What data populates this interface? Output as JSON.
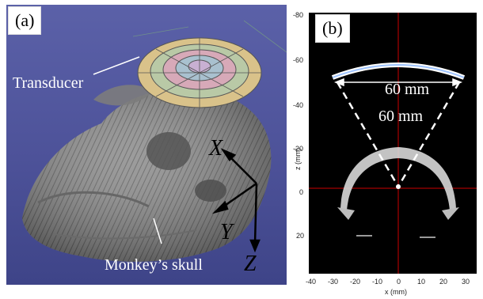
{
  "panel_a": {
    "label": "(a)",
    "transducer_label": "Transducer",
    "skull_label": "Monkey’s skull",
    "axes": {
      "x": "X",
      "y": "Y",
      "z": "Z"
    }
  },
  "panel_b": {
    "label": "(b)",
    "width_label": "60 mm",
    "radius_label": "60 mm",
    "x_axis_label": "x (mm)",
    "y_axis_label": "z (mm)",
    "x_ticks": [
      "-40",
      "-30",
      "-20",
      "-10",
      "0",
      "10",
      "20",
      "30"
    ],
    "y_ticks": [
      "-80",
      "-60",
      "-40",
      "-20",
      "0",
      "20"
    ]
  },
  "colors": {
    "background_a": "#4d5299",
    "ct_background": "#000000",
    "crosshair": "#cc0000"
  }
}
